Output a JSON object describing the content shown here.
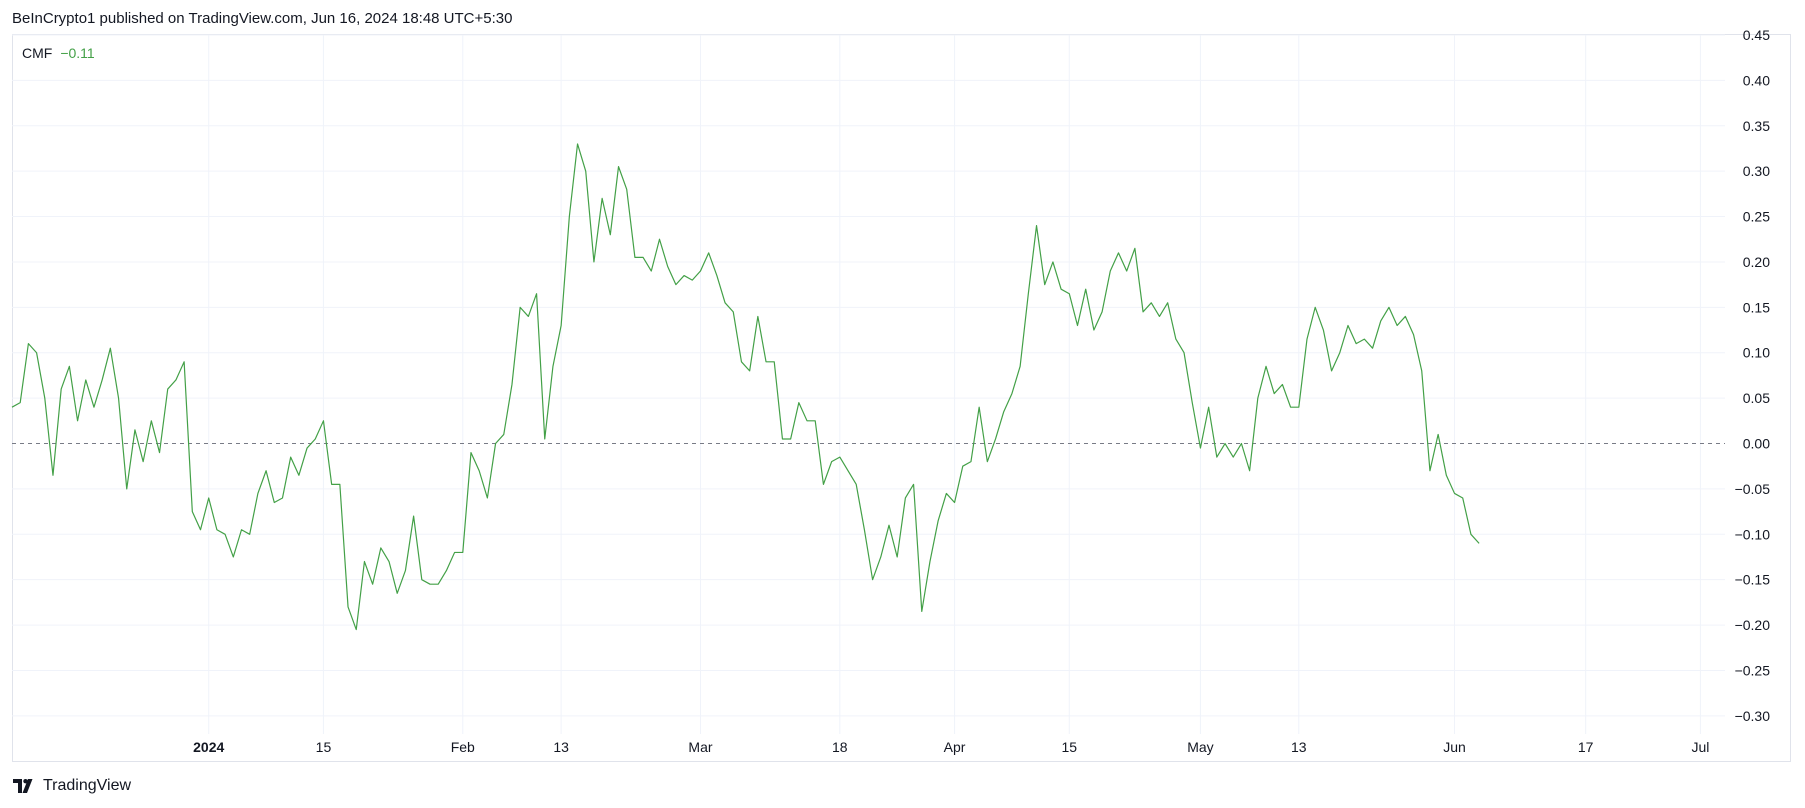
{
  "header": {
    "publish_line": "BeInCrypto1 published on TradingView.com, Jun 16, 2024 18:48 UTC+5:30"
  },
  "legend": {
    "indicator_name": "CMF",
    "indicator_value": "−0.11"
  },
  "brand": {
    "name": "TradingView"
  },
  "colors": {
    "line": "#43a047",
    "grid": "#f0f3fa",
    "zero_line": "#787b86",
    "axis_text": "#131722"
  },
  "chart_data": {
    "type": "line",
    "title": "",
    "xlabel": "",
    "ylabel": "",
    "ylim": [
      -0.32,
      0.45
    ],
    "xlim": [
      "2023-12-08",
      "2024-07-04"
    ],
    "grid": true,
    "reference_line": 0.0,
    "y_ticks": [
      0.45,
      0.4,
      0.35,
      0.3,
      0.25,
      0.2,
      0.15,
      0.1,
      0.05,
      0.0,
      -0.05,
      -0.1,
      -0.15,
      -0.2,
      -0.25,
      -0.3
    ],
    "y_tick_labels": [
      "0.45",
      "0.40",
      "0.35",
      "0.30",
      "0.25",
      "0.20",
      "0.15",
      "0.10",
      "0.05",
      "0.00",
      "−0.05",
      "−0.10",
      "−0.15",
      "−0.20",
      "−0.25",
      "−0.30"
    ],
    "x_ticks": [
      {
        "date": "2024-01-01",
        "label": "2024",
        "bold": true
      },
      {
        "date": "2024-01-15",
        "label": "15",
        "bold": false
      },
      {
        "date": "2024-02-01",
        "label": "Feb",
        "bold": false
      },
      {
        "date": "2024-02-13",
        "label": "13",
        "bold": false
      },
      {
        "date": "2024-03-01",
        "label": "Mar",
        "bold": false
      },
      {
        "date": "2024-03-18",
        "label": "18",
        "bold": false
      },
      {
        "date": "2024-04-01",
        "label": "Apr",
        "bold": false
      },
      {
        "date": "2024-04-15",
        "label": "15",
        "bold": false
      },
      {
        "date": "2024-05-01",
        "label": "May",
        "bold": false
      },
      {
        "date": "2024-05-13",
        "label": "13",
        "bold": false
      },
      {
        "date": "2024-06-01",
        "label": "Jun",
        "bold": false
      },
      {
        "date": "2024-06-17",
        "label": "17",
        "bold": false
      },
      {
        "date": "2024-07-01",
        "label": "Jul",
        "bold": false
      }
    ],
    "series": [
      {
        "name": "CMF",
        "points": [
          [
            "2023-12-08",
            0.04
          ],
          [
            "2023-12-09",
            0.045
          ],
          [
            "2023-12-10",
            0.11
          ],
          [
            "2023-12-11",
            0.1
          ],
          [
            "2023-12-12",
            0.05
          ],
          [
            "2023-12-13",
            -0.035
          ],
          [
            "2023-12-14",
            0.06
          ],
          [
            "2023-12-15",
            0.085
          ],
          [
            "2023-12-16",
            0.025
          ],
          [
            "2023-12-17",
            0.07
          ],
          [
            "2023-12-18",
            0.04
          ],
          [
            "2023-12-19",
            0.07
          ],
          [
            "2023-12-20",
            0.105
          ],
          [
            "2023-12-21",
            0.05
          ],
          [
            "2023-12-22",
            -0.05
          ],
          [
            "2023-12-23",
            0.015
          ],
          [
            "2023-12-24",
            -0.02
          ],
          [
            "2023-12-25",
            0.025
          ],
          [
            "2023-12-26",
            -0.01
          ],
          [
            "2023-12-27",
            0.06
          ],
          [
            "2023-12-28",
            0.07
          ],
          [
            "2023-12-29",
            0.09
          ],
          [
            "2023-12-30",
            -0.075
          ],
          [
            "2023-12-31",
            -0.095
          ],
          [
            "2024-01-01",
            -0.06
          ],
          [
            "2024-01-02",
            -0.095
          ],
          [
            "2024-01-03",
            -0.1
          ],
          [
            "2024-01-04",
            -0.125
          ],
          [
            "2024-01-05",
            -0.095
          ],
          [
            "2024-01-06",
            -0.1
          ],
          [
            "2024-01-07",
            -0.055
          ],
          [
            "2024-01-08",
            -0.03
          ],
          [
            "2024-01-09",
            -0.065
          ],
          [
            "2024-01-10",
            -0.06
          ],
          [
            "2024-01-11",
            -0.015
          ],
          [
            "2024-01-12",
            -0.035
          ],
          [
            "2024-01-13",
            -0.005
          ],
          [
            "2024-01-14",
            0.005
          ],
          [
            "2024-01-15",
            0.025
          ],
          [
            "2024-01-16",
            -0.045
          ],
          [
            "2024-01-17",
            -0.045
          ],
          [
            "2024-01-18",
            -0.18
          ],
          [
            "2024-01-19",
            -0.205
          ],
          [
            "2024-01-20",
            -0.13
          ],
          [
            "2024-01-21",
            -0.155
          ],
          [
            "2024-01-22",
            -0.115
          ],
          [
            "2024-01-23",
            -0.13
          ],
          [
            "2024-01-24",
            -0.165
          ],
          [
            "2024-01-25",
            -0.14
          ],
          [
            "2024-01-26",
            -0.08
          ],
          [
            "2024-01-27",
            -0.15
          ],
          [
            "2024-01-28",
            -0.155
          ],
          [
            "2024-01-29",
            -0.155
          ],
          [
            "2024-01-30",
            -0.14
          ],
          [
            "2024-01-31",
            -0.12
          ],
          [
            "2024-02-01",
            -0.12
          ],
          [
            "2024-02-02",
            -0.01
          ],
          [
            "2024-02-03",
            -0.03
          ],
          [
            "2024-02-04",
            -0.06
          ],
          [
            "2024-02-05",
            0.0
          ],
          [
            "2024-02-06",
            0.01
          ],
          [
            "2024-02-07",
            0.065
          ],
          [
            "2024-02-08",
            0.15
          ],
          [
            "2024-02-09",
            0.14
          ],
          [
            "2024-02-10",
            0.165
          ],
          [
            "2024-02-11",
            0.005
          ],
          [
            "2024-02-12",
            0.085
          ],
          [
            "2024-02-13",
            0.13
          ],
          [
            "2024-02-14",
            0.25
          ],
          [
            "2024-02-15",
            0.33
          ],
          [
            "2024-02-16",
            0.3
          ],
          [
            "2024-02-17",
            0.2
          ],
          [
            "2024-02-18",
            0.27
          ],
          [
            "2024-02-19",
            0.23
          ],
          [
            "2024-02-20",
            0.305
          ],
          [
            "2024-02-21",
            0.28
          ],
          [
            "2024-02-22",
            0.205
          ],
          [
            "2024-02-23",
            0.205
          ],
          [
            "2024-02-24",
            0.19
          ],
          [
            "2024-02-25",
            0.225
          ],
          [
            "2024-02-26",
            0.195
          ],
          [
            "2024-02-27",
            0.175
          ],
          [
            "2024-02-28",
            0.185
          ],
          [
            "2024-02-29",
            0.18
          ],
          [
            "2024-03-01",
            0.19
          ],
          [
            "2024-03-02",
            0.21
          ],
          [
            "2024-03-03",
            0.185
          ],
          [
            "2024-03-04",
            0.155
          ],
          [
            "2024-03-05",
            0.145
          ],
          [
            "2024-03-06",
            0.09
          ],
          [
            "2024-03-07",
            0.08
          ],
          [
            "2024-03-08",
            0.14
          ],
          [
            "2024-03-09",
            0.09
          ],
          [
            "2024-03-10",
            0.09
          ],
          [
            "2024-03-11",
            0.005
          ],
          [
            "2024-03-12",
            0.005
          ],
          [
            "2024-03-13",
            0.045
          ],
          [
            "2024-03-14",
            0.025
          ],
          [
            "2024-03-15",
            0.025
          ],
          [
            "2024-03-16",
            -0.045
          ],
          [
            "2024-03-17",
            -0.02
          ],
          [
            "2024-03-18",
            -0.015
          ],
          [
            "2024-03-19",
            -0.03
          ],
          [
            "2024-03-20",
            -0.045
          ],
          [
            "2024-03-21",
            -0.095
          ],
          [
            "2024-03-22",
            -0.15
          ],
          [
            "2024-03-23",
            -0.125
          ],
          [
            "2024-03-24",
            -0.09
          ],
          [
            "2024-03-25",
            -0.125
          ],
          [
            "2024-03-26",
            -0.06
          ],
          [
            "2024-03-27",
            -0.045
          ],
          [
            "2024-03-28",
            -0.185
          ],
          [
            "2024-03-29",
            -0.13
          ],
          [
            "2024-03-30",
            -0.085
          ],
          [
            "2024-03-31",
            -0.055
          ],
          [
            "2024-04-01",
            -0.065
          ],
          [
            "2024-04-02",
            -0.025
          ],
          [
            "2024-04-03",
            -0.02
          ],
          [
            "2024-04-04",
            0.04
          ],
          [
            "2024-04-05",
            -0.02
          ],
          [
            "2024-04-06",
            0.005
          ],
          [
            "2024-04-07",
            0.035
          ],
          [
            "2024-04-08",
            0.055
          ],
          [
            "2024-04-09",
            0.085
          ],
          [
            "2024-04-10",
            0.165
          ],
          [
            "2024-04-11",
            0.24
          ],
          [
            "2024-04-12",
            0.175
          ],
          [
            "2024-04-13",
            0.2
          ],
          [
            "2024-04-14",
            0.17
          ],
          [
            "2024-04-15",
            0.165
          ],
          [
            "2024-04-16",
            0.13
          ],
          [
            "2024-04-17",
            0.17
          ],
          [
            "2024-04-18",
            0.125
          ],
          [
            "2024-04-19",
            0.145
          ],
          [
            "2024-04-20",
            0.19
          ],
          [
            "2024-04-21",
            0.21
          ],
          [
            "2024-04-22",
            0.19
          ],
          [
            "2024-04-23",
            0.215
          ],
          [
            "2024-04-24",
            0.145
          ],
          [
            "2024-04-25",
            0.155
          ],
          [
            "2024-04-26",
            0.14
          ],
          [
            "2024-04-27",
            0.155
          ],
          [
            "2024-04-28",
            0.115
          ],
          [
            "2024-04-29",
            0.1
          ],
          [
            "2024-04-30",
            0.045
          ],
          [
            "2024-05-01",
            -0.005
          ],
          [
            "2024-05-02",
            0.04
          ],
          [
            "2024-05-03",
            -0.015
          ],
          [
            "2024-05-04",
            0.0
          ],
          [
            "2024-05-05",
            -0.015
          ],
          [
            "2024-05-06",
            0.0
          ],
          [
            "2024-05-07",
            -0.03
          ],
          [
            "2024-05-08",
            0.05
          ],
          [
            "2024-05-09",
            0.085
          ],
          [
            "2024-05-10",
            0.055
          ],
          [
            "2024-05-11",
            0.065
          ],
          [
            "2024-05-12",
            0.04
          ],
          [
            "2024-05-13",
            0.04
          ],
          [
            "2024-05-14",
            0.115
          ],
          [
            "2024-05-15",
            0.15
          ],
          [
            "2024-05-16",
            0.125
          ],
          [
            "2024-05-17",
            0.08
          ],
          [
            "2024-05-18",
            0.1
          ],
          [
            "2024-05-19",
            0.13
          ],
          [
            "2024-05-20",
            0.11
          ],
          [
            "2024-05-21",
            0.115
          ],
          [
            "2024-05-22",
            0.105
          ],
          [
            "2024-05-23",
            0.135
          ],
          [
            "2024-05-24",
            0.15
          ],
          [
            "2024-05-25",
            0.13
          ],
          [
            "2024-05-26",
            0.14
          ],
          [
            "2024-05-27",
            0.12
          ],
          [
            "2024-05-28",
            0.08
          ],
          [
            "2024-05-29",
            -0.03
          ],
          [
            "2024-05-30",
            0.01
          ],
          [
            "2024-05-31",
            -0.035
          ],
          [
            "2024-06-01",
            -0.055
          ],
          [
            "2024-06-02",
            -0.06
          ],
          [
            "2024-06-03",
            -0.1
          ],
          [
            "2024-06-04",
            -0.11
          ]
        ]
      }
    ]
  }
}
